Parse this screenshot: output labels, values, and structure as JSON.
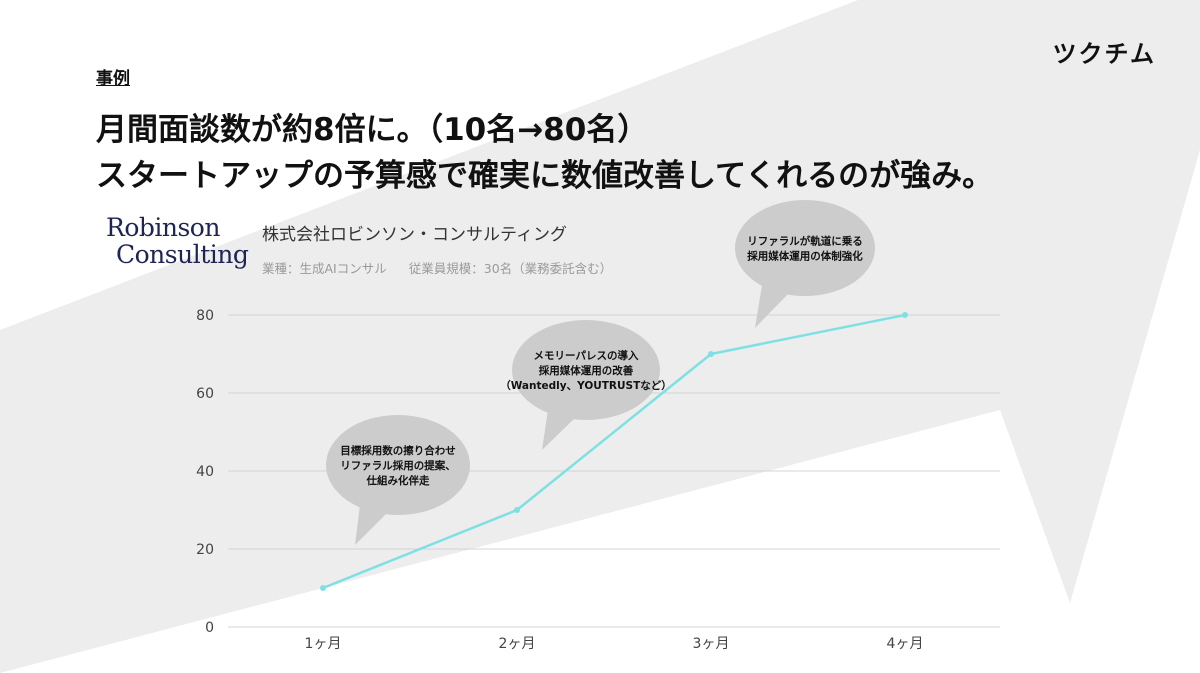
{
  "brand": {
    "logo_text": "ツクチム"
  },
  "header": {
    "section_label": "事例",
    "headline_line1": "月間面談数が約8倍に。（10名→80名）",
    "headline_line2": "スタートアップの予算感で確実に数値改善してくれるのが強み。"
  },
  "company": {
    "logo_line1": "Robinson",
    "logo_line2": "Consulting",
    "name": "株式会社ロビンソン・コンサルティング",
    "industry": "業種：生成AIコンサル",
    "employees": "従業員規模：30名（業務委託含む）"
  },
  "colors": {
    "line": "#7fe0e3",
    "bubble": "#cccccc",
    "grid": "#d4d4d4",
    "background_arrow": "#ededed"
  },
  "chart_data": {
    "type": "line",
    "categories": [
      "1ヶ月",
      "2ヶ月",
      "3ヶ月",
      "4ヶ月"
    ],
    "values": [
      10,
      30,
      70,
      80
    ],
    "ylim": [
      0,
      80
    ],
    "yticks": [
      0,
      20,
      40,
      60,
      80
    ],
    "grid": true,
    "annotations": [
      {
        "category_index": 0,
        "lines": [
          "目標採用数の擦り合わせ",
          "リファラル採用の提案、",
          "仕組み化伴走"
        ]
      },
      {
        "category_index": 1,
        "lines": [
          "メモリーパレスの導入",
          "採用媒体運用の改善",
          "（Wantedly、YOUTRUSTなど）"
        ]
      },
      {
        "category_index": 2,
        "lines": [
          "リファラルが軌道に乗る",
          "採用媒体運用の体制強化"
        ]
      }
    ]
  }
}
